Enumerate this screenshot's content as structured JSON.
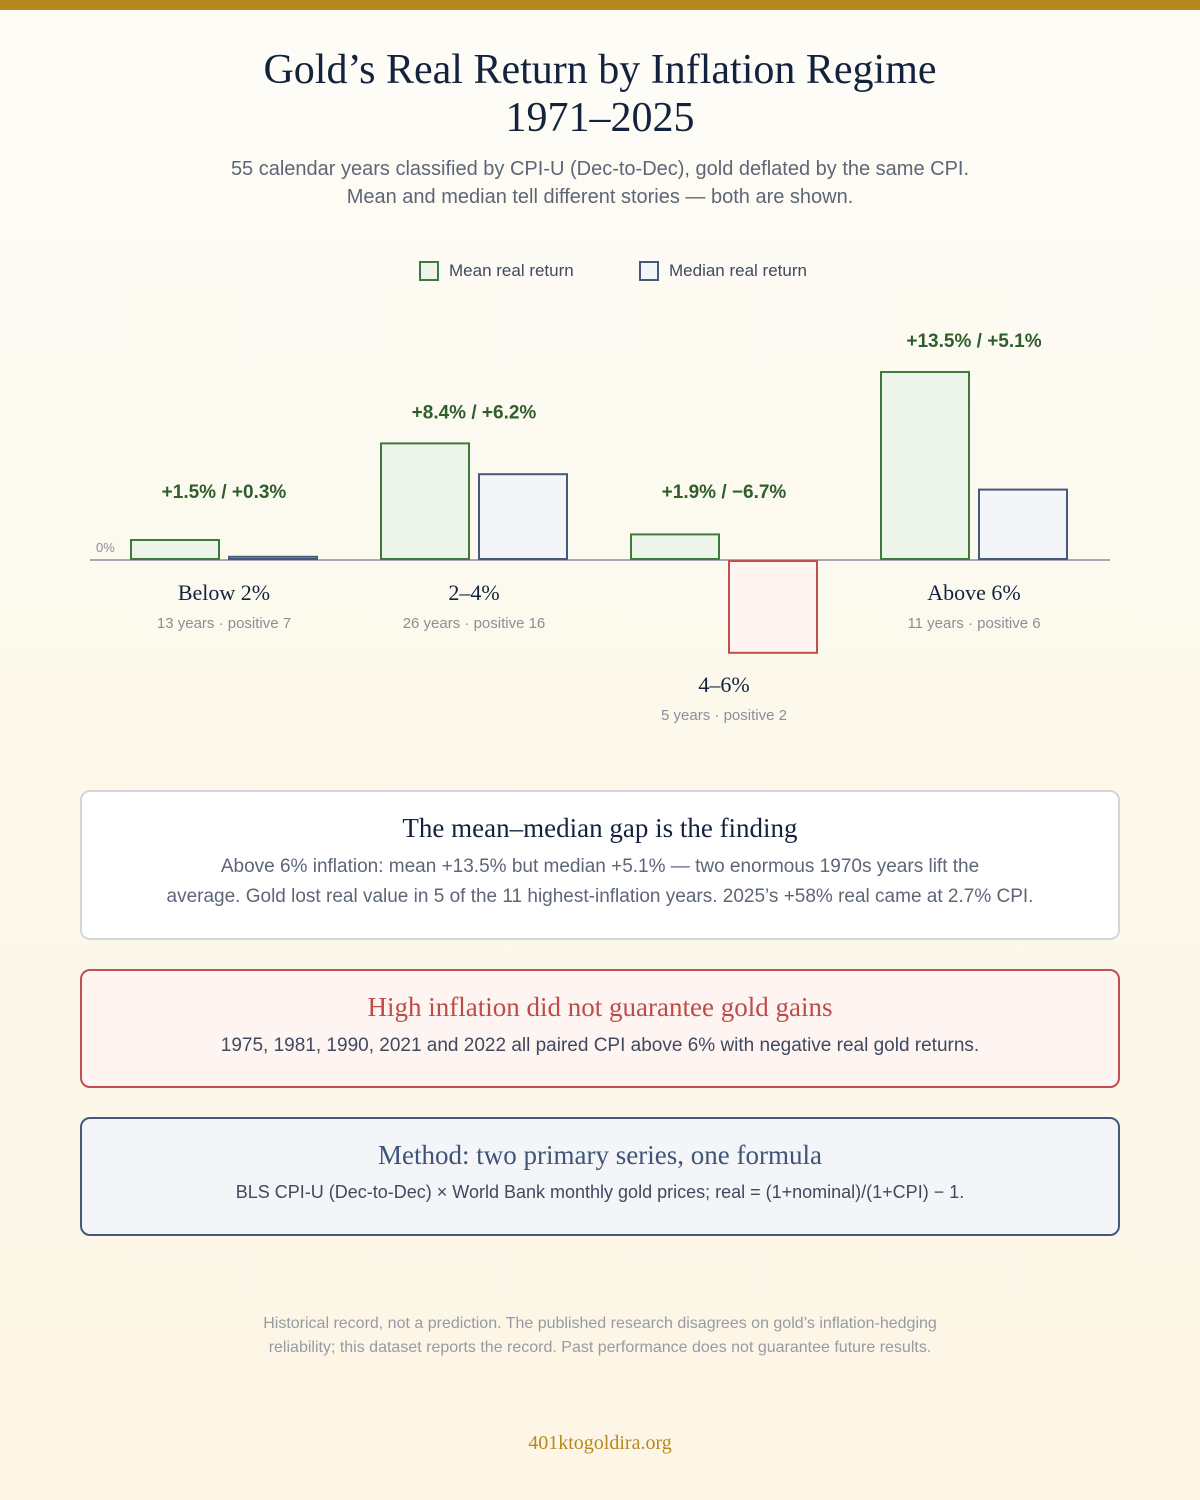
{
  "header": {
    "title_line1": "Gold’s Real Return by Inflation Regime",
    "title_line2": "1971–2025",
    "subtitle_line1": "55 calendar years classified by CPI-U (Dec-to-Dec), gold deflated by the same CPI.",
    "subtitle_line2": "Mean and median tell different stories — both are shown."
  },
  "colors": {
    "accent": "#b5891e",
    "positive_stroke": "#3f7a3c",
    "positive_fill": "#edf5ea",
    "median_stroke": "#47597b",
    "median_fill": "#f3f5f9",
    "negative_stroke": "#c0504d",
    "negative_fill": "#fef4f2",
    "label_green": "#2e5f2b"
  },
  "chart_data": {
    "type": "bar",
    "categories": [
      "Below 2%",
      "2–4%",
      "4–6%",
      "Above 6%"
    ],
    "category_notes": [
      "13 years · positive 7",
      "26 years · positive 16",
      "5 years · positive 2",
      "11 years · positive 6"
    ],
    "series": [
      {
        "name": "Mean real return",
        "values": [
          1.5,
          8.4,
          1.9,
          13.5
        ]
      },
      {
        "name": "Median real return",
        "values": [
          0.3,
          6.2,
          -6.7,
          5.1
        ]
      }
    ],
    "data_labels": [
      "+1.5% / +0.3%",
      "+8.4% / +6.2%",
      "+1.9% / −6.7%",
      "+13.5% / +5.1%"
    ],
    "zero_label": "0%",
    "units": "%"
  },
  "cards": {
    "finding": {
      "title": "The mean–median gap is the finding",
      "body_line1": "Above 6% inflation: mean +13.5% but median +5.1% — two enormous 1970s years lift the",
      "body_line2": "average. Gold lost real value in 5 of the 11 highest-inflation years. 2025’s +58% real came at 2.7% CPI."
    },
    "warning": {
      "title": "High inflation did not guarantee gold gains",
      "body": "1975, 1981, 1990, 2021 and 2022 all paired CPI above 6% with negative real gold returns."
    },
    "method": {
      "title": "Method: two primary series, one formula",
      "body": "BLS CPI-U (Dec-to-Dec) × World Bank monthly gold prices; real = (1+nominal)/(1+CPI) − 1."
    }
  },
  "footer": {
    "disclaimer_line1": "Historical record, not a prediction. The published research disagrees on gold’s inflation-hedging",
    "disclaimer_line2": "reliability; this dataset reports the record. Past performance does not guarantee future results.",
    "site": "401ktogoldira.org"
  }
}
